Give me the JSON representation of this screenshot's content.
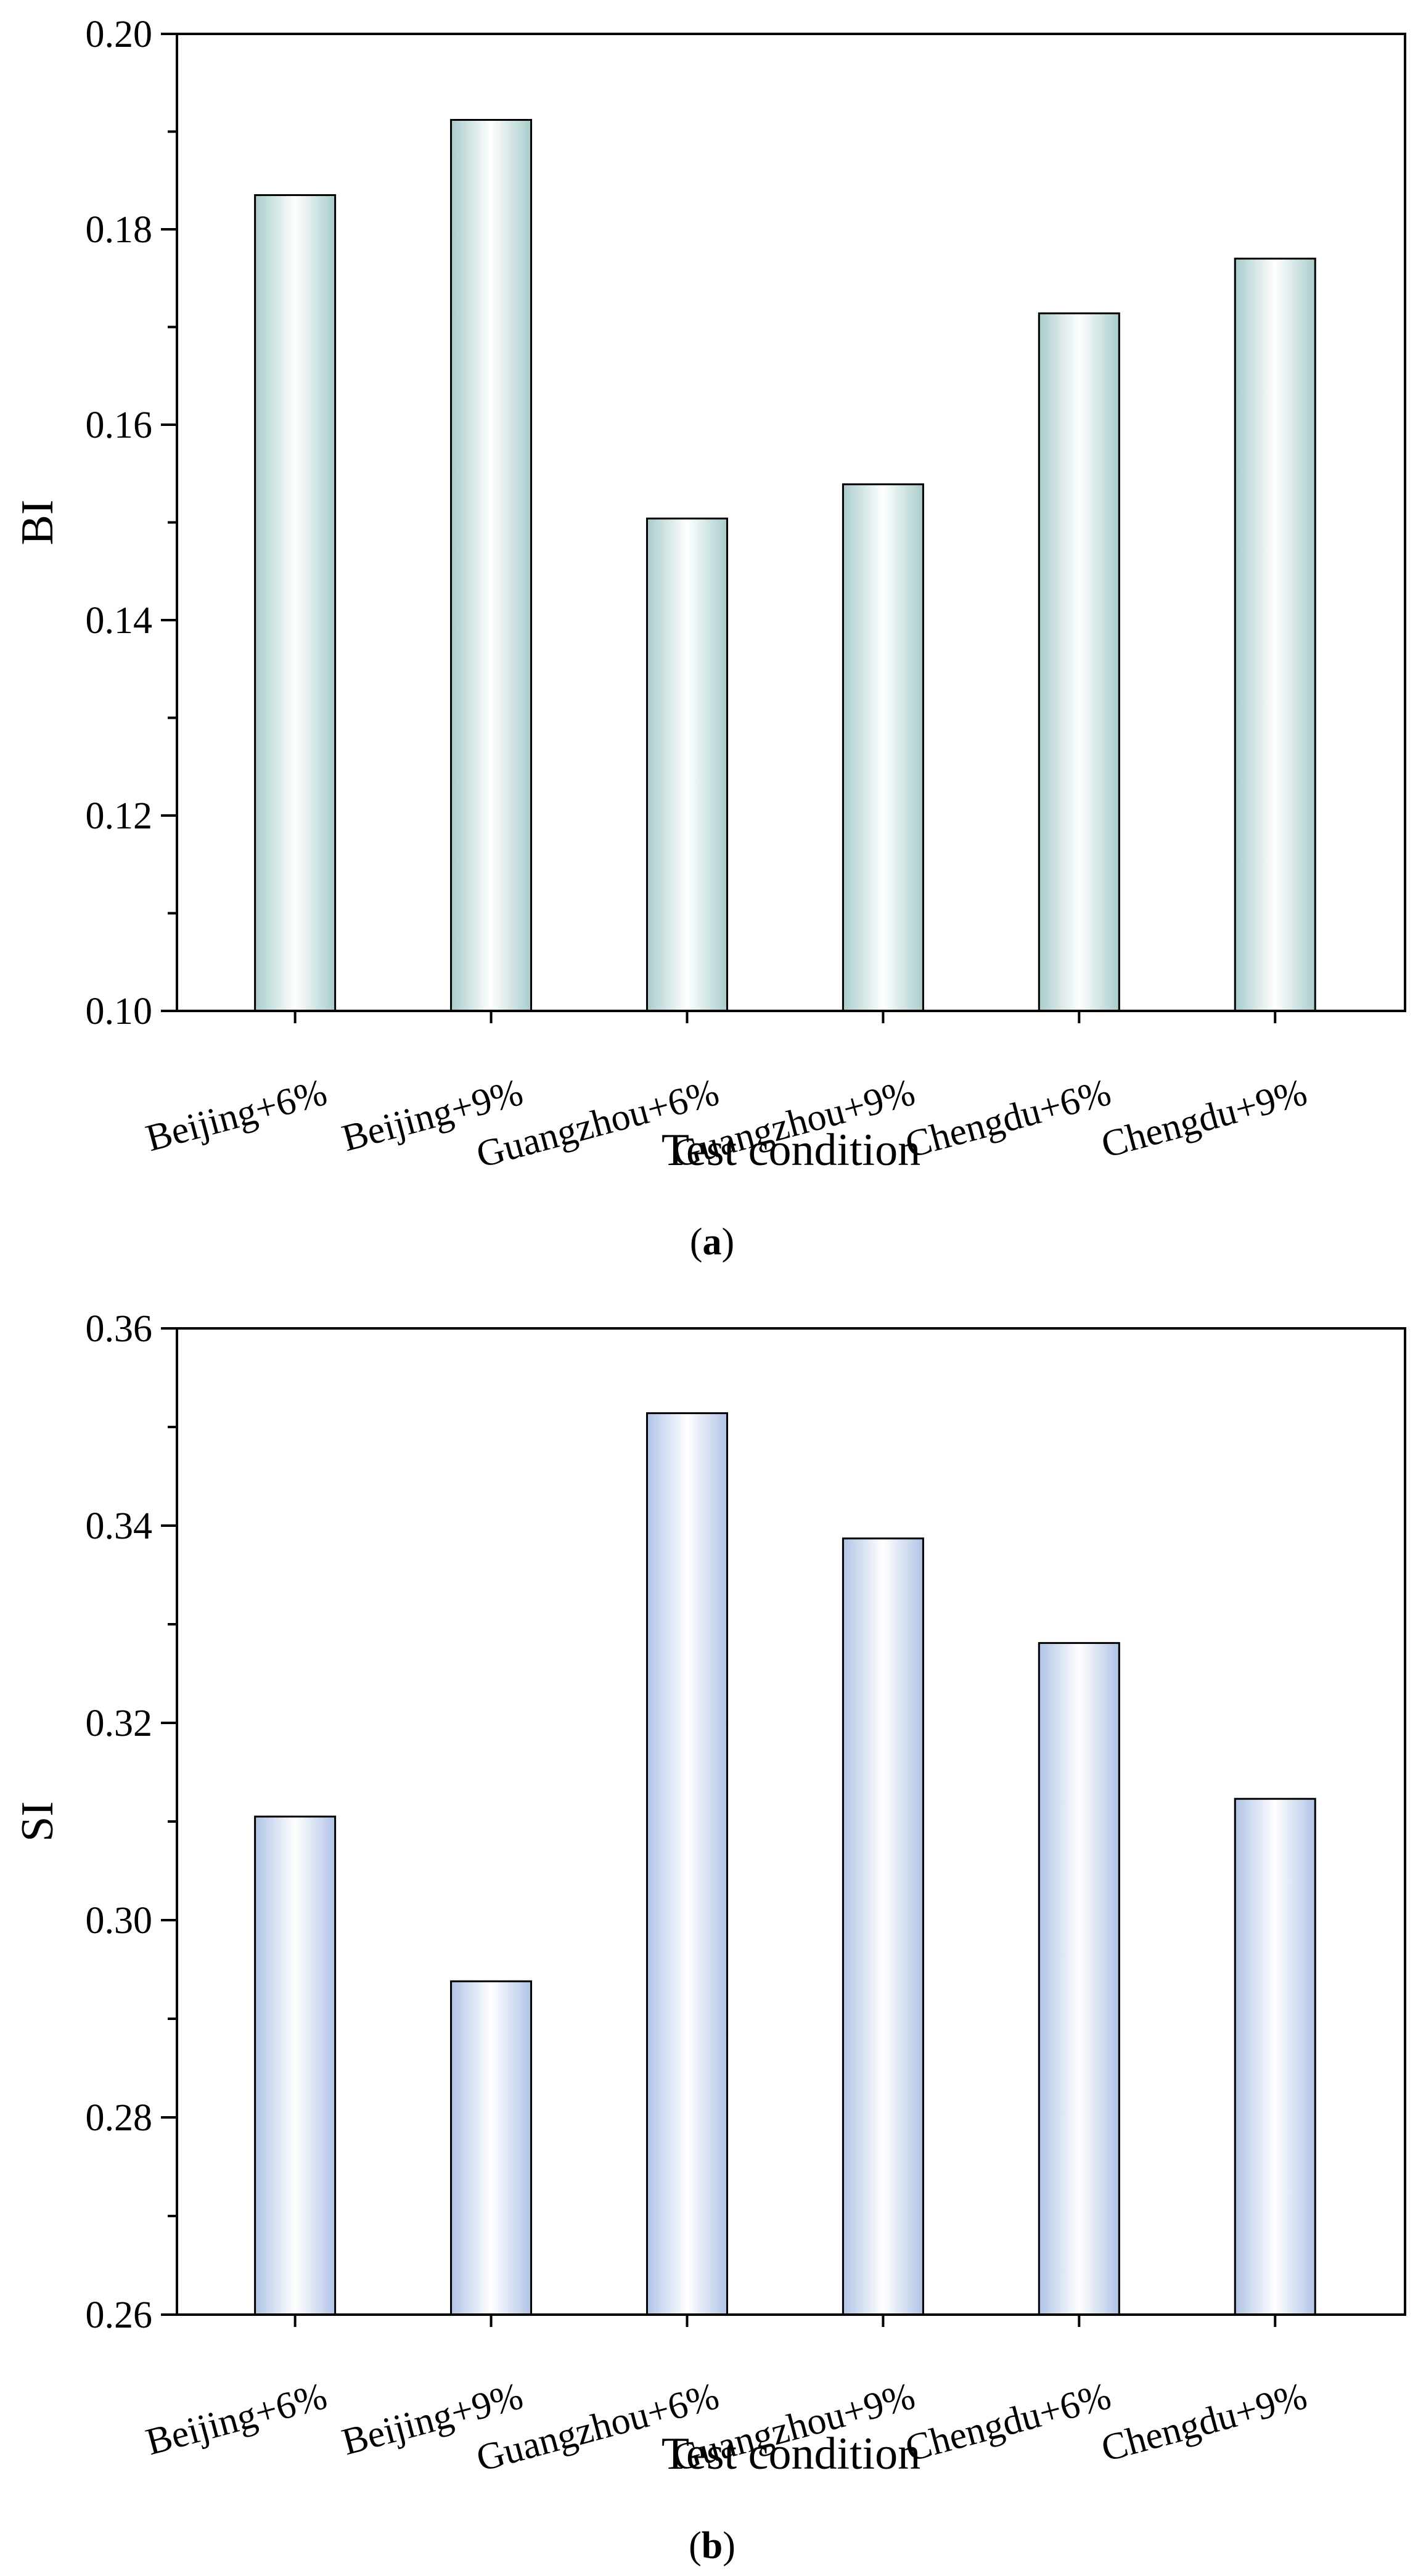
{
  "chart_data": [
    {
      "type": "bar",
      "panel": "a",
      "panel_label": {
        "open": "(",
        "letter": "a",
        "close": ")"
      },
      "title": "",
      "xlabel": "Test condition",
      "ylabel": "BI",
      "ylim": [
        0.1,
        0.2
      ],
      "yticks": [
        "0.10",
        "0.12",
        "0.14",
        "0.16",
        "0.18",
        "0.20"
      ],
      "yticks_values": [
        0.1,
        0.12,
        0.14,
        0.16,
        0.18,
        0.2
      ],
      "minor_tick_step": 0.01,
      "categories": [
        "Beijing+6%",
        "Beijing+9%",
        "Guangzhou+6%",
        "Guangzhou+9%",
        "Chengdu+6%",
        "Chengdu+9%"
      ],
      "values": [
        0.1835,
        0.1912,
        0.1504,
        0.1539,
        0.1714,
        0.177
      ],
      "bar_color_edge": "#a9cccc",
      "bar_color_center": "#ffffff",
      "grid": false
    },
    {
      "type": "bar",
      "panel": "b",
      "panel_label": {
        "open": "(",
        "letter": "b",
        "close": ")"
      },
      "title": "",
      "xlabel": "Test condition",
      "ylabel": "SI",
      "ylim": [
        0.26,
        0.36
      ],
      "yticks": [
        "0.26",
        "0.28",
        "0.30",
        "0.32",
        "0.34",
        "0.36"
      ],
      "yticks_values": [
        0.26,
        0.28,
        0.3,
        0.32,
        0.34,
        0.36
      ],
      "minor_tick_step": 0.01,
      "categories": [
        "Beijing+6%",
        "Beijing+9%",
        "Guangzhou+6%",
        "Guangzhou+9%",
        "Chengdu+6%",
        "Chengdu+9%"
      ],
      "values": [
        0.3105,
        0.2938,
        0.3514,
        0.3387,
        0.3281,
        0.3123
      ],
      "bar_color_edge": "#b0c4e6",
      "bar_color_center": "#ffffff",
      "grid": false
    }
  ]
}
